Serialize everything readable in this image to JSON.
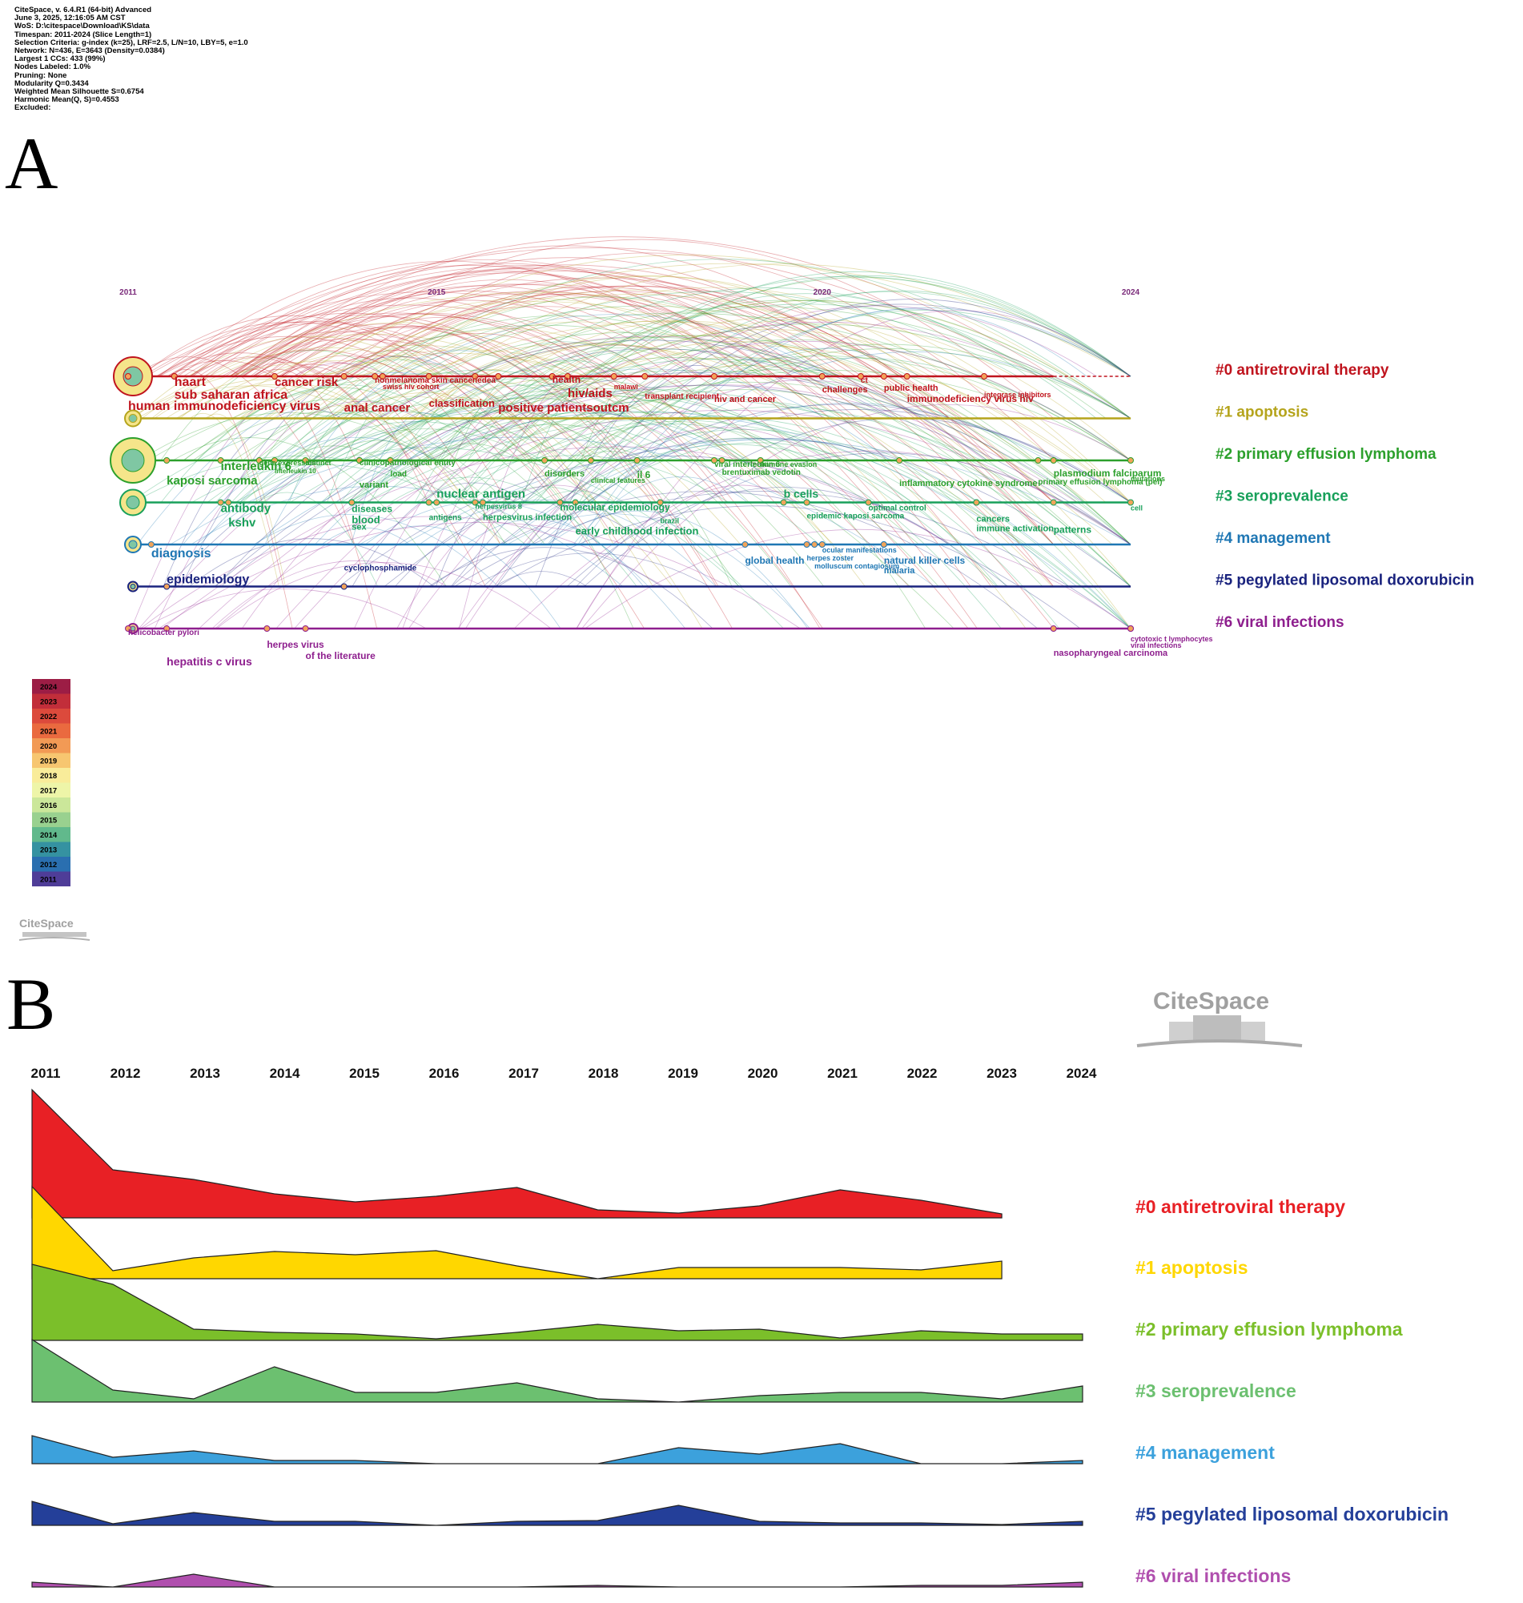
{
  "meta": [
    "CiteSpace, v. 6.4.R1 (64-bit) Advanced",
    "June 3, 2025, 12:16:05 AM CST",
    "WoS: D:\\citespace\\Download\\KS\\data",
    "Timespan: 2011-2024 (Slice Length=1)",
    "Selection Criteria: g-index (k=25), LRF=2.5, L/N=10, LBY=5, e=1.0",
    "Network: N=436, E=3643 (Density=0.0384)",
    "Largest 1 CCs: 433 (99%)",
    "Nodes Labeled: 1.0%",
    "Pruning: None",
    "Modularity Q=0.3434",
    "Weighted Mean Silhouette S=0.6754",
    "Harmonic Mean(Q, S)=0.4553",
    "Excluded:"
  ],
  "panel_a_label": "A",
  "panel_b_label": "B",
  "logo_text": "CiteSpace",
  "colors": {
    "c0": "#c0141e",
    "c1": "#b5a41c",
    "c2": "#2ca02c",
    "c3": "#18a05a",
    "c4": "#1f77b4",
    "c5": "#1a237e",
    "c6": "#8e1f8e",
    "b0": "#e82025",
    "b1": "#ffd700",
    "b2": "#7bbf2a",
    "b3": "#6cc070",
    "b4": "#3ca1dc",
    "b5": "#243f99",
    "b6": "#b04fae"
  },
  "timeline": {
    "year_ticks": [
      "2011",
      "2015",
      "2020",
      "2024"
    ],
    "clusters": [
      {
        "label": "#0 antiretroviral therapy",
        "color": "#c0141e",
        "end": 2023,
        "terms": [
          {
            "text": "human immunodeficiency virus",
            "year": 2011,
            "size": 16,
            "dy": 42
          },
          {
            "text": "sub saharan africa",
            "year": 2011.6,
            "size": 16,
            "dy": 28
          },
          {
            "text": "haart",
            "year": 2011.6,
            "size": 16,
            "dy": 12
          },
          {
            "text": "cancer risk",
            "year": 2012.9,
            "size": 15,
            "dy": 12
          },
          {
            "text": "nonmelanoma skin cancer",
            "year": 2014.2,
            "size": 10,
            "dy": 8
          },
          {
            "text": "swiss hiv cohort",
            "year": 2014.3,
            "size": 9,
            "dy": 16
          },
          {
            "text": "anal cancer",
            "year": 2013.8,
            "size": 15,
            "dy": 44
          },
          {
            "text": "classification",
            "year": 2014.9,
            "size": 13,
            "dy": 38
          },
          {
            "text": "iedea",
            "year": 2015.5,
            "size": 10,
            "dy": 8
          },
          {
            "text": "positive patientsoutcm",
            "year": 2015.8,
            "size": 15,
            "dy": 44
          },
          {
            "text": "health",
            "year": 2016.5,
            "size": 12,
            "dy": 8
          },
          {
            "text": "hiv/aids",
            "year": 2016.7,
            "size": 15,
            "dy": 26
          },
          {
            "text": "malawi",
            "year": 2017.3,
            "size": 9,
            "dy": 16
          },
          {
            "text": "transplant recipient",
            "year": 2017.7,
            "size": 10,
            "dy": 28
          },
          {
            "text": "hiv and cancer",
            "year": 2018.6,
            "size": 11,
            "dy": 32
          },
          {
            "text": "challenges",
            "year": 2020.0,
            "size": 11,
            "dy": 20
          },
          {
            "text": "ct",
            "year": 2020.5,
            "size": 10,
            "dy": 8
          },
          {
            "text": "public health",
            "year": 2020.8,
            "size": 11,
            "dy": 18
          },
          {
            "text": "immunodeficiency virus hiv",
            "year": 2021.1,
            "size": 12,
            "dy": 32
          },
          {
            "text": "integrase inhibitors",
            "year": 2022.1,
            "size": 9,
            "dy": 26
          }
        ]
      },
      {
        "label": "#1 apoptosis",
        "color": "#b5a41c",
        "end": 2024,
        "terms": []
      },
      {
        "label": "#2 primary effusion lymphoma",
        "color": "#2ca02c",
        "end": 2024,
        "terms": [
          {
            "text": "kaposi sarcoma",
            "year": 2011.5,
            "size": 15,
            "dy": 30
          },
          {
            "text": "interleukin 6",
            "year": 2012.2,
            "size": 15,
            "dy": 12
          },
          {
            "text": "gene expression",
            "year": 2012.7,
            "size": 9,
            "dy": 6
          },
          {
            "text": "distinct",
            "year": 2013.3,
            "size": 9,
            "dy": 6
          },
          {
            "text": "interleukin 10",
            "year": 2012.9,
            "size": 8,
            "dy": 16
          },
          {
            "text": "clinicopathological entity",
            "year": 2014.0,
            "size": 10,
            "dy": 6
          },
          {
            "text": "load",
            "year": 2014.4,
            "size": 10,
            "dy": 20
          },
          {
            "text": "variant",
            "year": 2014.0,
            "size": 11,
            "dy": 34
          },
          {
            "text": "disorders",
            "year": 2016.4,
            "size": 11,
            "dy": 20
          },
          {
            "text": "clinical features",
            "year": 2017.0,
            "size": 9,
            "dy": 28
          },
          {
            "text": "il 6",
            "year": 2017.6,
            "size": 12,
            "dy": 22
          },
          {
            "text": "viral interleukin 6",
            "year": 2018.6,
            "size": 10,
            "dy": 8
          },
          {
            "text": "immune evasion",
            "year": 2019.2,
            "size": 9,
            "dy": 8
          },
          {
            "text": "brentuximab vedotin",
            "year": 2018.7,
            "size": 10,
            "dy": 18
          },
          {
            "text": "inflammatory cytokine syndrome",
            "year": 2021.0,
            "size": 11,
            "dy": 32
          },
          {
            "text": "plasmodium falciparum",
            "year": 2023.0,
            "size": 12,
            "dy": 20
          },
          {
            "text": "primary effusion lymphoma (pel)",
            "year": 2022.8,
            "size": 10,
            "dy": 30
          },
          {
            "text": "mutations",
            "year": 2024.0,
            "size": 9,
            "dy": 26
          }
        ]
      },
      {
        "label": "#3 seroprevalence",
        "color": "#18a05a",
        "end": 2024,
        "terms": [
          {
            "text": "antibody",
            "year": 2012.2,
            "size": 15,
            "dy": 12
          },
          {
            "text": "kshv",
            "year": 2012.3,
            "size": 15,
            "dy": 30
          },
          {
            "text": "nuclear antigen",
            "year": 2015.0,
            "size": 15,
            "dy": -6
          },
          {
            "text": "diseases",
            "year": 2013.9,
            "size": 12,
            "dy": 12
          },
          {
            "text": "blood",
            "year": 2013.9,
            "size": 13,
            "dy": 26
          },
          {
            "text": "sex",
            "year": 2013.9,
            "size": 11,
            "dy": 34
          },
          {
            "text": "antigens",
            "year": 2014.9,
            "size": 10,
            "dy": 22
          },
          {
            "text": "herpesvirus 8",
            "year": 2015.5,
            "size": 9,
            "dy": 8
          },
          {
            "text": "herpesvirus infection",
            "year": 2015.6,
            "size": 11,
            "dy": 22
          },
          {
            "text": "molecular epidemiology",
            "year": 2016.6,
            "size": 12,
            "dy": 10
          },
          {
            "text": "brazil",
            "year": 2017.9,
            "size": 9,
            "dy": 26
          },
          {
            "text": "early childhood infection",
            "year": 2016.8,
            "size": 13,
            "dy": 40
          },
          {
            "text": "b cells",
            "year": 2019.5,
            "size": 14,
            "dy": -6
          },
          {
            "text": "optimal control",
            "year": 2020.6,
            "size": 10,
            "dy": 10
          },
          {
            "text": "epidemic kaposi sarcoma",
            "year": 2019.8,
            "size": 10,
            "dy": 20
          },
          {
            "text": "cancers",
            "year": 2022.0,
            "size": 11,
            "dy": 24
          },
          {
            "text": "immune activation",
            "year": 2022.0,
            "size": 11,
            "dy": 36
          },
          {
            "text": "patterns",
            "year": 2023.0,
            "size": 12,
            "dy": 38
          },
          {
            "text": "cell",
            "year": 2024.0,
            "size": 9,
            "dy": 10
          }
        ]
      },
      {
        "label": "#4 management",
        "color": "#1f77b4",
        "end": 2024,
        "terms": [
          {
            "text": "diagnosis",
            "year": 2011.3,
            "size": 16,
            "dy": 16
          },
          {
            "text": "global health",
            "year": 2019.0,
            "size": 12,
            "dy": 24
          },
          {
            "text": "ocular manifestations",
            "year": 2020.0,
            "size": 9,
            "dy": 10
          },
          {
            "text": "herpes zoster",
            "year": 2019.8,
            "size": 9,
            "dy": 20
          },
          {
            "text": "molluscum contagiosum",
            "year": 2019.9,
            "size": 9,
            "dy": 30
          },
          {
            "text": "natural killer cells",
            "year": 2020.8,
            "size": 12,
            "dy": 24
          },
          {
            "text": "malaria",
            "year": 2020.8,
            "size": 11,
            "dy": 36
          }
        ]
      },
      {
        "label": "#5 pegylated liposomal doxorubicin",
        "color": "#1a237e",
        "end": 2024,
        "terms": [
          {
            "text": "epidemiology",
            "year": 2011.5,
            "size": 16,
            "dy": -4
          },
          {
            "text": "cyclophosphamide",
            "year": 2013.8,
            "size": 10,
            "dy": -20
          }
        ]
      },
      {
        "label": "#6 viral infections",
        "color": "#8e1f8e",
        "end": 2024,
        "terms": [
          {
            "text": "helicobacter pylori",
            "year": 2011.0,
            "size": 10,
            "dy": 8
          },
          {
            "text": "hepatitis c virus",
            "year": 2011.5,
            "size": 14,
            "dy": 46
          },
          {
            "text": "herpes virus",
            "year": 2012.8,
            "size": 12,
            "dy": 24
          },
          {
            "text": "of the literature",
            "year": 2013.3,
            "size": 12,
            "dy": 38
          },
          {
            "text": "cytotoxic t lymphocytes",
            "year": 2024.0,
            "size": 9,
            "dy": 16
          },
          {
            "text": "viral infections",
            "year": 2024.0,
            "size": 9,
            "dy": 24
          },
          {
            "text": "nasopharyngeal carcinoma",
            "year": 2023.0,
            "size": 11,
            "dy": 34
          }
        ]
      }
    ],
    "legend_years": [
      "2024",
      "2023",
      "2022",
      "2021",
      "2020",
      "2019",
      "2018",
      "2017",
      "2016",
      "2015",
      "2014",
      "2013",
      "2012",
      "2011"
    ],
    "legend_colors": [
      "#9c1d45",
      "#c22e3a",
      "#dc4a3c",
      "#ea6a3f",
      "#f29a55",
      "#f7c670",
      "#f9ec9a",
      "#eef5a8",
      "#cbe79a",
      "#99d18f",
      "#61b98c",
      "#3592a1",
      "#2a6fb0",
      "#4f3d98"
    ]
  },
  "chart_data": {
    "type": "area",
    "title": "",
    "xlabel": "",
    "ylabel": "",
    "years": [
      "2011",
      "2012",
      "2013",
      "2014",
      "2015",
      "2016",
      "2017",
      "2018",
      "2019",
      "2020",
      "2021",
      "2022",
      "2023",
      "2024"
    ],
    "series": [
      {
        "name": "#0 antiretroviral therapy",
        "color": "#e82025",
        "values": [
          160,
          60,
          48,
          30,
          20,
          27,
          38,
          10,
          6,
          15,
          35,
          22,
          5,
          null
        ]
      },
      {
        "name": "#1 apoptosis",
        "color": "#ffd700",
        "values": [
          115,
          10,
          26,
          34,
          30,
          35,
          16,
          0,
          14,
          14,
          14,
          11,
          22,
          null
        ]
      },
      {
        "name": "#2 primary effusion lymphoma",
        "color": "#7bbf2a",
        "values": [
          95,
          70,
          14,
          10,
          8,
          2,
          10,
          20,
          12,
          14,
          3,
          12,
          8,
          8
        ]
      },
      {
        "name": "#3 seroprevalence",
        "color": "#6cc070",
        "values": [
          78,
          15,
          4,
          44,
          12,
          12,
          24,
          4,
          0,
          8,
          12,
          12,
          4,
          20
        ]
      },
      {
        "name": "#4 management",
        "color": "#3ca1dc",
        "values": [
          35,
          8,
          16,
          4,
          4,
          0,
          0,
          0,
          20,
          12,
          25,
          0,
          0,
          4
        ]
      },
      {
        "name": "#5 pegylated liposomal doxorubicin",
        "color": "#243f99",
        "values": [
          30,
          2,
          16,
          5,
          5,
          0,
          5,
          6,
          25,
          5,
          3,
          3,
          1,
          5
        ]
      },
      {
        "name": "#6 viral infections",
        "color": "#b04fae",
        "values": [
          6,
          0,
          16,
          0,
          0,
          0,
          0,
          2,
          0,
          0,
          0,
          2,
          2,
          6
        ]
      }
    ]
  }
}
